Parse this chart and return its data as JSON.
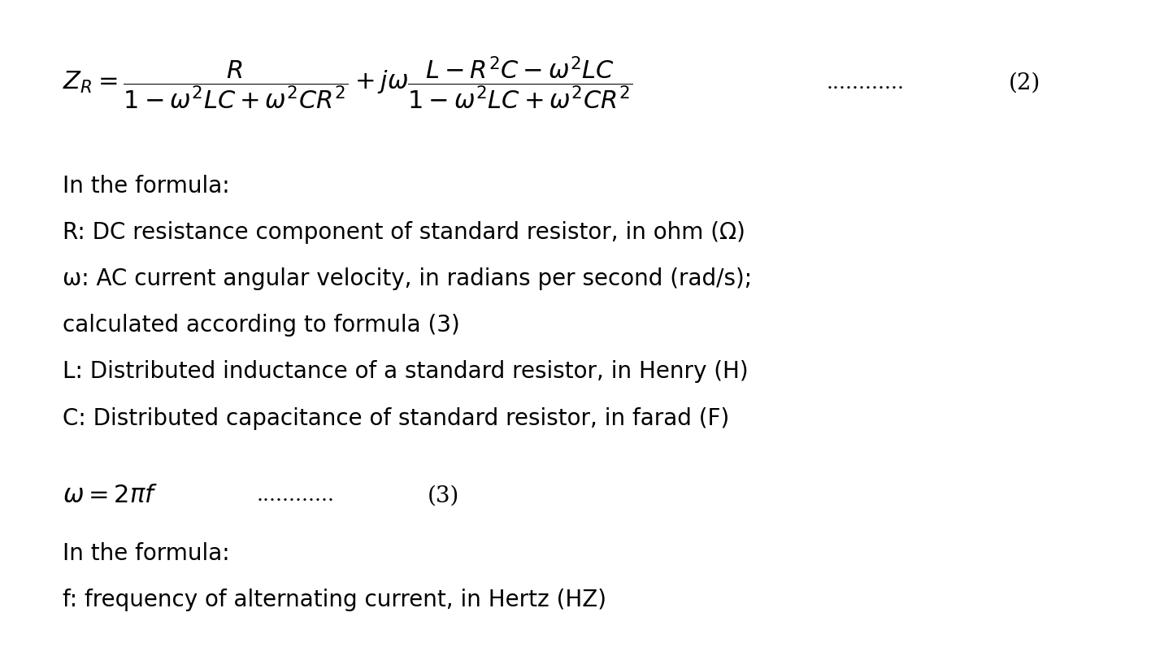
{
  "background_color": "#ffffff",
  "formula1_dots": "............",
  "formula1_number": "(2)",
  "text_lines": [
    "In the formula:",
    "R: DC resistance component of standard resistor, in ohm (Ω)",
    "ω: AC current angular velocity, in radians per second (rad/s);",
    "calculated according to formula (3)",
    "L: Distributed inductance of a standard resistor, in Henry (H)",
    "C: Distributed capacitance of standard resistor, in farad (F)"
  ],
  "formula2_dots": "............",
  "formula2_number": "(3)",
  "text_lines2": [
    "In the formula:",
    "f: frequency of alternating current, in Hertz (HZ)"
  ],
  "formula_fontsize": 22,
  "text_fontsize": 20,
  "dots_fontsize": 18
}
